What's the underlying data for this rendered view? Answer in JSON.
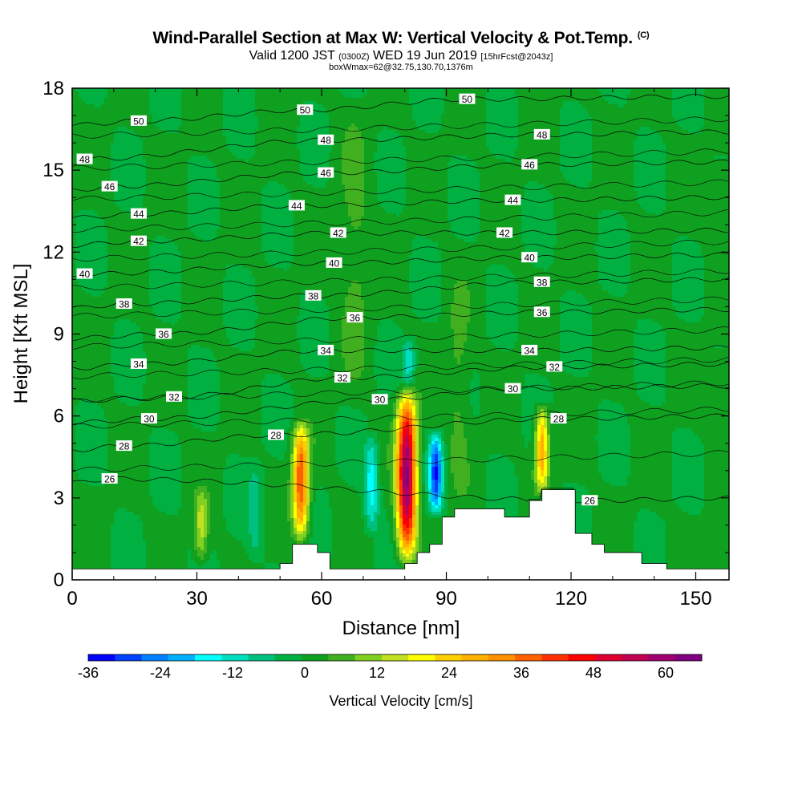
{
  "title": {
    "main": "Wind-Parallel Section at Max W: Vertical Velocity & Pot.Temp.",
    "copyright": "(C)",
    "valid_prefix": "Valid 1200 JST",
    "valid_utc": "(0300Z)",
    "valid_suffix": "WED 19 Jun 2019",
    "forecast": "[15hrFcst@2043z]",
    "box": "boxWmax=62@32.75,130.70,1376m"
  },
  "chart_data": {
    "type": "heatmap",
    "xlabel": "Distance [nm]",
    "ylabel": "Height [Kft MSL]",
    "xlim": [
      0,
      158
    ],
    "ylim": [
      0,
      18
    ],
    "x_ticks": [
      0,
      30,
      60,
      90,
      120,
      150
    ],
    "y_ticks": [
      0,
      3,
      6,
      9,
      12,
      15,
      18
    ],
    "colorbar": {
      "label": "Vertical Velocity [cm/s]",
      "ticks": [
        -36,
        -24,
        -12,
        0,
        12,
        24,
        36,
        48,
        60
      ],
      "range": [
        -36,
        66
      ],
      "colors": [
        "#0000ff",
        "#0040ff",
        "#0080ff",
        "#00b0ff",
        "#00ffff",
        "#00e0c0",
        "#00c080",
        "#00b040",
        "#10a020",
        "#40b020",
        "#80d020",
        "#c0e020",
        "#ffff00",
        "#ffd000",
        "#ffb000",
        "#ff9000",
        "#ff6000",
        "#ff3000",
        "#ff0000",
        "#e00030",
        "#c00050",
        "#a00070",
        "#800080"
      ]
    },
    "background_w": 0,
    "updrafts": [
      {
        "x": 55,
        "z_bottom": 1.2,
        "z_top": 6.0,
        "w_max": 40
      },
      {
        "x": 80.5,
        "z_bottom": 0.4,
        "z_top": 7.2,
        "w_max": 62
      },
      {
        "x": 113,
        "z_bottom": 3.0,
        "z_top": 6.6,
        "w_max": 30
      },
      {
        "x": 31,
        "z_bottom": 0.4,
        "z_top": 3.5,
        "w_max": 14
      },
      {
        "x": 93,
        "z_bottom": 2.6,
        "z_top": 11.5,
        "w_max": 6
      },
      {
        "x": 68,
        "z_bottom": 6.0,
        "z_top": 18.0,
        "w_max": 6
      }
    ],
    "downdrafts": [
      {
        "x": 87.5,
        "z_bottom": 2.2,
        "z_top": 5.6,
        "w_min": -30
      },
      {
        "x": 72,
        "z_bottom": 1.5,
        "z_top": 5.5,
        "w_min": -16
      },
      {
        "x": 81,
        "z_bottom": 7.0,
        "z_top": 9.0,
        "w_min": -12
      },
      {
        "x": 44,
        "z_bottom": 0.5,
        "z_top": 4.5,
        "w_min": -8
      }
    ],
    "terrain": [
      [
        0,
        0.4
      ],
      [
        50,
        0.4
      ],
      [
        50,
        0.6
      ],
      [
        53,
        0.6
      ],
      [
        53,
        1.3
      ],
      [
        59,
        1.3
      ],
      [
        59,
        1.0
      ],
      [
        62,
        1.0
      ],
      [
        62,
        0.4
      ],
      [
        80,
        0.4
      ],
      [
        80,
        0.6
      ],
      [
        83,
        0.6
      ],
      [
        83,
        1.0
      ],
      [
        86,
        1.0
      ],
      [
        86,
        1.3
      ],
      [
        89,
        1.3
      ],
      [
        89,
        2.3
      ],
      [
        92,
        2.3
      ],
      [
        92,
        2.6
      ],
      [
        104,
        2.6
      ],
      [
        104,
        2.3
      ],
      [
        110,
        2.3
      ],
      [
        110,
        2.9
      ],
      [
        113,
        2.9
      ],
      [
        113,
        3.3
      ],
      [
        121,
        3.3
      ],
      [
        121,
        1.7
      ],
      [
        125,
        1.7
      ],
      [
        125,
        1.3
      ],
      [
        128,
        1.3
      ],
      [
        128,
        1.0
      ],
      [
        137,
        1.0
      ],
      [
        137,
        0.6
      ],
      [
        143,
        0.6
      ],
      [
        143,
        0.4
      ],
      [
        158,
        0.4
      ]
    ],
    "isentropes": [
      {
        "level": 26,
        "label_x": 9,
        "label_y": 3.7
      },
      {
        "level": 26,
        "label_x": 124.5,
        "label_y": 2.9
      },
      {
        "level": 28,
        "label_x": 12.5,
        "label_y": 4.9
      },
      {
        "level": 28,
        "label_x": 49,
        "label_y": 5.3
      },
      {
        "level": 28,
        "label_x": 117,
        "label_y": 5.9
      },
      {
        "level": 30,
        "label_x": 18.5,
        "label_y": 5.9
      },
      {
        "level": 30,
        "label_x": 74,
        "label_y": 6.6
      },
      {
        "level": 30,
        "label_x": 106,
        "label_y": 7.0
      },
      {
        "level": 32,
        "label_x": 24.5,
        "label_y": 6.7
      },
      {
        "level": 32,
        "label_x": 65,
        "label_y": 7.4
      },
      {
        "level": 32,
        "label_x": 116,
        "label_y": 7.8
      },
      {
        "level": 34,
        "label_x": 16,
        "label_y": 7.9
      },
      {
        "level": 34,
        "label_x": 61,
        "label_y": 8.4
      },
      {
        "level": 34,
        "label_x": 110,
        "label_y": 8.4
      },
      {
        "level": 36,
        "label_x": 22,
        "label_y": 9.0
      },
      {
        "level": 36,
        "label_x": 68,
        "label_y": 9.6
      },
      {
        "level": 36,
        "label_x": 113,
        "label_y": 9.8
      },
      {
        "level": 38,
        "label_x": 12.5,
        "label_y": 10.1
      },
      {
        "level": 38,
        "label_x": 58,
        "label_y": 10.4
      },
      {
        "level": 38,
        "label_x": 113,
        "label_y": 10.9
      },
      {
        "level": 40,
        "label_x": 3,
        "label_y": 11.2
      },
      {
        "level": 40,
        "label_x": 63,
        "label_y": 11.6
      },
      {
        "level": 40,
        "label_x": 110,
        "label_y": 11.8
      },
      {
        "level": 42,
        "label_x": 16,
        "label_y": 12.4
      },
      {
        "level": 42,
        "label_x": 64,
        "label_y": 12.7
      },
      {
        "level": 42,
        "label_x": 104,
        "label_y": 12.7
      },
      {
        "level": 44,
        "label_x": 16,
        "label_y": 13.4
      },
      {
        "level": 44,
        "label_x": 54,
        "label_y": 13.7
      },
      {
        "level": 44,
        "label_x": 106,
        "label_y": 13.9
      },
      {
        "level": 46,
        "label_x": 9,
        "label_y": 14.4
      },
      {
        "level": 46,
        "label_x": 61,
        "label_y": 14.9
      },
      {
        "level": 46,
        "label_x": 110,
        "label_y": 15.2
      },
      {
        "level": 48,
        "label_x": 3,
        "label_y": 15.4
      },
      {
        "level": 48,
        "label_x": 61,
        "label_y": 16.1
      },
      {
        "level": 48,
        "label_x": 113,
        "label_y": 16.3
      },
      {
        "level": 50,
        "label_x": 16,
        "label_y": 16.8
      },
      {
        "level": 50,
        "label_x": 56,
        "label_y": 17.2
      },
      {
        "level": 50,
        "label_x": 95,
        "label_y": 17.6
      }
    ]
  }
}
